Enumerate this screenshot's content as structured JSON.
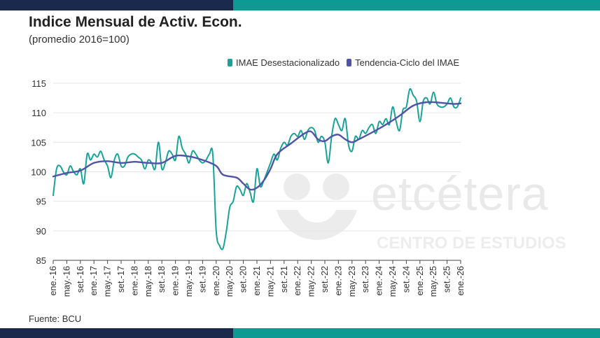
{
  "title": "Indice Mensual de Activ. Econ.",
  "subtitle": "(promedio 2016=100)",
  "source": "Fuente: BCU",
  "watermark": {
    "brand": "etcétera",
    "subbrand": "CENTRO DE ESTUDIOS"
  },
  "legend": [
    {
      "label": "IMAE Desestacionalizado",
      "color": "#17a398"
    },
    {
      "label": "Tendencia-Ciclo del IMAE",
      "color": "#4f54a5"
    }
  ],
  "chart_data": {
    "type": "line",
    "title": "Indice Mensual de Activ. Econ.",
    "subtitle": "(promedio 2016=100)",
    "ylim": [
      85,
      115
    ],
    "yticks": [
      85,
      90,
      95,
      100,
      105,
      110,
      115
    ],
    "xlim": [
      "2016-01",
      "2026-01"
    ],
    "x_tick_labels": [
      "ene.-16",
      "may.-16",
      "set.-16",
      "ene.-17",
      "may.-17",
      "set.-17",
      "ene.-18",
      "may.-18",
      "set.-18",
      "ene.-19",
      "may.-19",
      "set.-19",
      "ene.-20",
      "may.-20",
      "set.-20",
      "ene.-21",
      "may.-21",
      "set.-21",
      "ene.-22",
      "may.-22",
      "set.-22",
      "ene.-23",
      "may.-23",
      "set.-23",
      "ene.-24",
      "may.-24",
      "set.-24",
      "ene.-25",
      "may.-25",
      "set.-25",
      "ene.-26"
    ],
    "grid": true,
    "legend_position": "top-right",
    "series": [
      {
        "name": "IMAE Desestacionalizado",
        "color": "#17a398",
        "anchors": [
          [
            0,
            96
          ],
          [
            1,
            100.5
          ],
          [
            2,
            101
          ],
          [
            3,
            100
          ],
          [
            4,
            99.5
          ],
          [
            5,
            101
          ],
          [
            6,
            100
          ],
          [
            7,
            99.5
          ],
          [
            8,
            100.5
          ],
          [
            9,
            98
          ],
          [
            10,
            103
          ],
          [
            11,
            102
          ],
          [
            12,
            103
          ],
          [
            13,
            102.5
          ],
          [
            14,
            103.5
          ],
          [
            15,
            102
          ],
          [
            16,
            101
          ],
          [
            17,
            99
          ],
          [
            18,
            102
          ],
          [
            19,
            103
          ],
          [
            20,
            101
          ],
          [
            21,
            101
          ],
          [
            22,
            102.5
          ],
          [
            23,
            103
          ],
          [
            24,
            103
          ],
          [
            25,
            102.5
          ],
          [
            26,
            102
          ],
          [
            27,
            100.5
          ],
          [
            28,
            102
          ],
          [
            29,
            101.5
          ],
          [
            30,
            100.5
          ],
          [
            31,
            105
          ],
          [
            32,
            100.5
          ],
          [
            33,
            101.5
          ],
          [
            34,
            103.5
          ],
          [
            35,
            103
          ],
          [
            36,
            102
          ],
          [
            37,
            106
          ],
          [
            38,
            104
          ],
          [
            39,
            103
          ],
          [
            40,
            101.5
          ],
          [
            41,
            103.5
          ],
          [
            42,
            103
          ],
          [
            43,
            102
          ],
          [
            44,
            101.5
          ],
          [
            45,
            102
          ],
          [
            46,
            103
          ],
          [
            47,
            103
          ],
          [
            48,
            90
          ],
          [
            49,
            87.5
          ],
          [
            50,
            87
          ],
          [
            51,
            90
          ],
          [
            52,
            94
          ],
          [
            53,
            95
          ],
          [
            54,
            97.5
          ],
          [
            55,
            97
          ],
          [
            56,
            96
          ],
          [
            57,
            98
          ],
          [
            58,
            96.5
          ],
          [
            59,
            95
          ],
          [
            60,
            100.5
          ],
          [
            61,
            97.5
          ],
          [
            62,
            98.5
          ],
          [
            63,
            100
          ],
          [
            64,
            101.5
          ],
          [
            65,
            103
          ],
          [
            66,
            102
          ],
          [
            67,
            104
          ],
          [
            68,
            105
          ],
          [
            69,
            104.5
          ],
          [
            70,
            106
          ],
          [
            71,
            106.5
          ],
          [
            72,
            106
          ],
          [
            73,
            107
          ],
          [
            74,
            105.5
          ],
          [
            75,
            107
          ],
          [
            76,
            107.5
          ],
          [
            77,
            107
          ],
          [
            78,
            105
          ],
          [
            79,
            106
          ],
          [
            80,
            105
          ],
          [
            81,
            101.5
          ],
          [
            82,
            106
          ],
          [
            83,
            109
          ],
          [
            84,
            108
          ],
          [
            85,
            107
          ],
          [
            86,
            109
          ],
          [
            87,
            104.5
          ],
          [
            88,
            103.5
          ],
          [
            89,
            106
          ],
          [
            90,
            105.5
          ],
          [
            91,
            107
          ],
          [
            92,
            106.5
          ],
          [
            93,
            107.5
          ],
          [
            94,
            108
          ],
          [
            95,
            106.5
          ],
          [
            96,
            108.5
          ],
          [
            97,
            108
          ],
          [
            98,
            109
          ],
          [
            99,
            108
          ],
          [
            100,
            111
          ],
          [
            101,
            108.5
          ],
          [
            102,
            107
          ],
          [
            103,
            110.5
          ],
          [
            104,
            111
          ],
          [
            105,
            114
          ],
          [
            106,
            113
          ],
          [
            107,
            112
          ],
          [
            108,
            108.5
          ],
          [
            109,
            112
          ],
          [
            110,
            112.5
          ],
          [
            111,
            111.5
          ],
          [
            112,
            113.5
          ],
          [
            113,
            111.5
          ],
          [
            114,
            111
          ],
          [
            115,
            111
          ],
          [
            116,
            111.5
          ],
          [
            117,
            112.5
          ],
          [
            118,
            111
          ],
          [
            119,
            111
          ],
          [
            120,
            112.5
          ]
        ]
      },
      {
        "name": "Tendencia-Ciclo del IMAE",
        "color": "#4f54a5",
        "anchors": [
          [
            0,
            99.2
          ],
          [
            4,
            99.8
          ],
          [
            8,
            100.2
          ],
          [
            12,
            101.5
          ],
          [
            16,
            101.8
          ],
          [
            20,
            101.5
          ],
          [
            24,
            101.7
          ],
          [
            28,
            101.5
          ],
          [
            32,
            101.5
          ],
          [
            36,
            102.7
          ],
          [
            40,
            102.6
          ],
          [
            44,
            102
          ],
          [
            48,
            101
          ],
          [
            50,
            99.5
          ],
          [
            54,
            99
          ],
          [
            56,
            98
          ],
          [
            58,
            97
          ],
          [
            60,
            97.3
          ],
          [
            62,
            98.5
          ],
          [
            64,
            100.5
          ],
          [
            66,
            103
          ],
          [
            70,
            104.8
          ],
          [
            74,
            106.5
          ],
          [
            76,
            106.8
          ],
          [
            78,
            105.5
          ],
          [
            80,
            105.2
          ],
          [
            82,
            106
          ],
          [
            84,
            106.3
          ],
          [
            86,
            105.5
          ],
          [
            88,
            105
          ],
          [
            90,
            105.5
          ],
          [
            94,
            106.7
          ],
          [
            98,
            108
          ],
          [
            102,
            109.5
          ],
          [
            106,
            111.2
          ],
          [
            110,
            111.8
          ],
          [
            114,
            111.7
          ],
          [
            118,
            111.5
          ],
          [
            120,
            111.6
          ]
        ]
      }
    ]
  }
}
